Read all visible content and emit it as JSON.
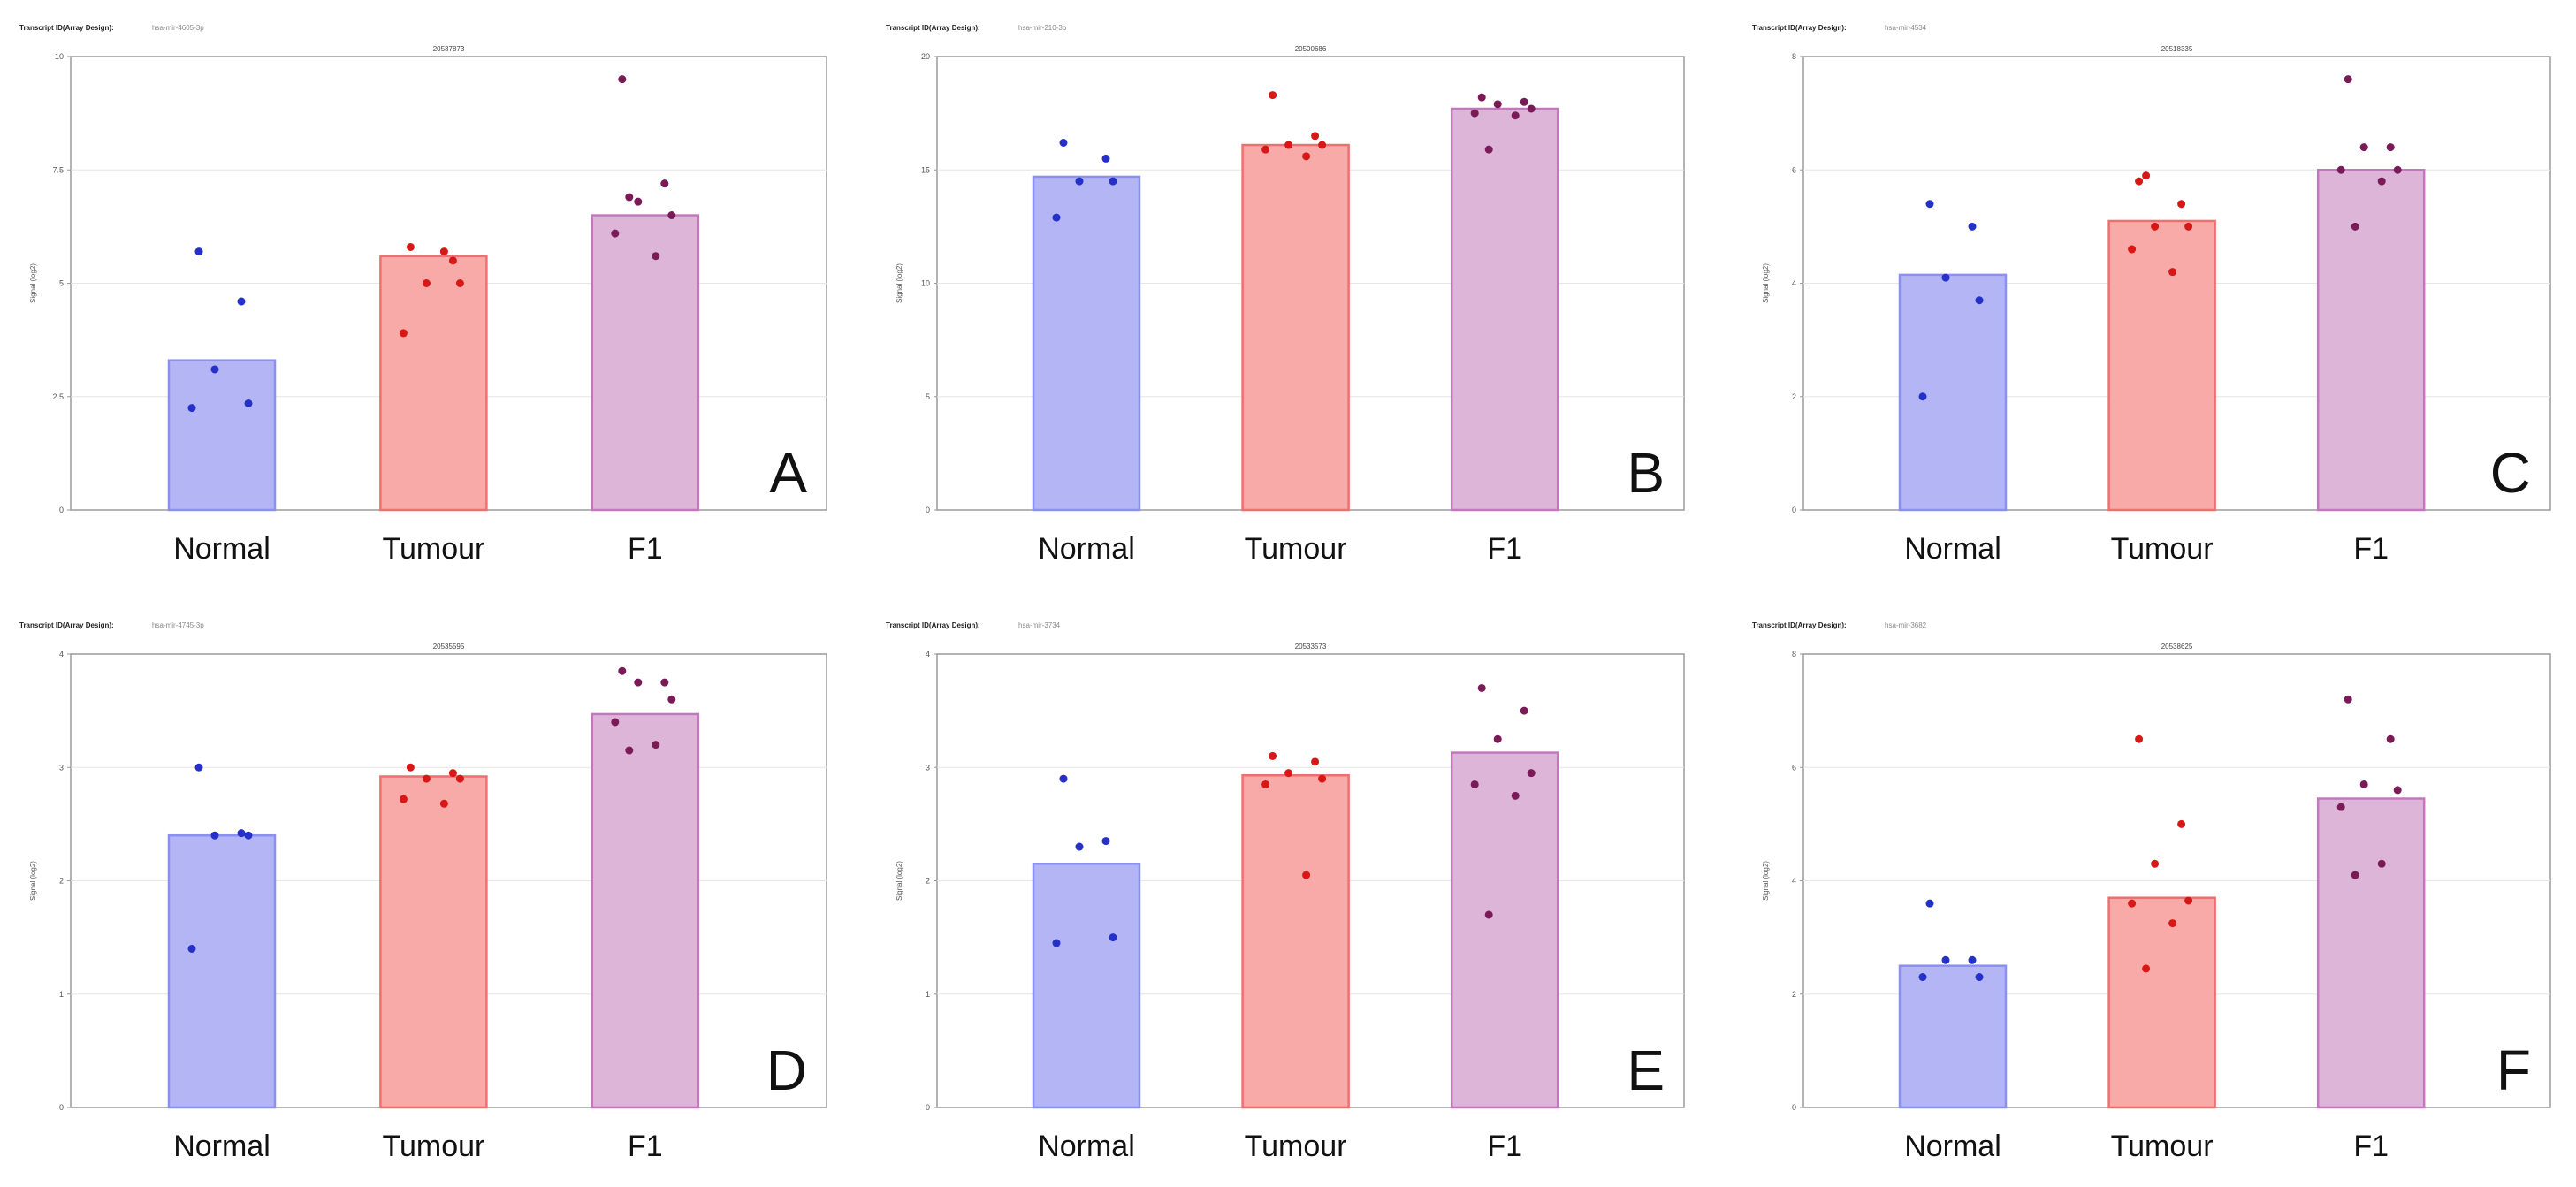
{
  "chart_data": [
    {
      "type": "bar",
      "panel_letter": "A",
      "header": "Transcript ID(Array Design):",
      "header_sub": "hsa-mir-4605-3p",
      "title": "20537873",
      "ylabel": "Signal (log2)",
      "ylim": [
        0,
        10
      ],
      "yticks": [
        0,
        2.5,
        5,
        7.5,
        10
      ],
      "ytick_labels": [
        "0",
        "2.5",
        "5",
        "7.5",
        "10"
      ],
      "categories": [
        "Normal",
        "Tumour",
        "F1"
      ],
      "colors": [
        "#b3b5f5",
        "#f8aaa8",
        "#ddb5d9"
      ],
      "edge_colors": [
        "#8b8ff0",
        "#ee6f6f",
        "#c477bd"
      ],
      "point_colors": [
        "#2430c8",
        "#d81717",
        "#7a1a57"
      ],
      "values": [
        3.3,
        5.6,
        6.5
      ],
      "points": [
        [
          5.7,
          4.6,
          3.1,
          2.35,
          2.25
        ],
        [
          5.8,
          5.5,
          5.0,
          5.0,
          3.9,
          5.7
        ],
        [
          9.5,
          7.2,
          6.8,
          6.5,
          6.1,
          5.6,
          6.9
        ]
      ]
    },
    {
      "type": "bar",
      "panel_letter": "B",
      "header": "Transcript ID(Array Design):",
      "header_sub": "hsa-mir-210-3p",
      "title": "20500686",
      "ylabel": "Signal (log2)",
      "ylim": [
        0,
        20
      ],
      "yticks": [
        0,
        5,
        10,
        15,
        20
      ],
      "ytick_labels": [
        "0",
        "5",
        "10",
        "15",
        "20"
      ],
      "categories": [
        "Normal",
        "Tumour",
        "F1"
      ],
      "colors": [
        "#b3b5f5",
        "#f8aaa8",
        "#ddb5d9"
      ],
      "edge_colors": [
        "#8b8ff0",
        "#ee6f6f",
        "#c477bd"
      ],
      "point_colors": [
        "#2430c8",
        "#d81717",
        "#7a1a57"
      ],
      "values": [
        14.7,
        16.1,
        17.7
      ],
      "points": [
        [
          16.2,
          15.5,
          14.5,
          14.5,
          12.9
        ],
        [
          18.3,
          16.5,
          16.1,
          16.1,
          15.9,
          15.6
        ],
        [
          18.2,
          18.0,
          17.9,
          17.7,
          17.5,
          17.4,
          15.9
        ]
      ]
    },
    {
      "type": "bar",
      "panel_letter": "C",
      "header": "Transcript ID(Array Design):",
      "header_sub": "hsa-mir-4534",
      "title": "20518335",
      "ylabel": "Signal (log2)",
      "ylim": [
        0,
        8
      ],
      "yticks": [
        0,
        2,
        4,
        6,
        8
      ],
      "ytick_labels": [
        "0",
        "2",
        "4",
        "6",
        "8"
      ],
      "categories": [
        "Normal",
        "Tumour",
        "F1"
      ],
      "colors": [
        "#b3b5f5",
        "#f8aaa8",
        "#ddb5d9"
      ],
      "edge_colors": [
        "#8b8ff0",
        "#ee6f6f",
        "#c477bd"
      ],
      "point_colors": [
        "#2430c8",
        "#d81717",
        "#7a1a57"
      ],
      "values": [
        4.15,
        5.1,
        6.0
      ],
      "points": [
        [
          5.4,
          5.0,
          4.1,
          3.7,
          2.0
        ],
        [
          5.8,
          5.4,
          5.0,
          5.0,
          4.6,
          4.2,
          5.9
        ],
        [
          7.6,
          6.4,
          6.4,
          6.0,
          6.0,
          5.8,
          5.0
        ]
      ]
    },
    {
      "type": "bar",
      "panel_letter": "D",
      "header": "Transcript ID(Array Design):",
      "header_sub": "hsa-mir-4745-3p",
      "title": "20535595",
      "ylabel": "Signal (log2)",
      "ylim": [
        0,
        4
      ],
      "yticks": [
        0,
        1,
        2,
        3,
        4
      ],
      "ytick_labels": [
        "0",
        "1",
        "2",
        "3",
        "4"
      ],
      "categories": [
        "Normal",
        "Tumour",
        "F1"
      ],
      "colors": [
        "#b3b5f5",
        "#f8aaa8",
        "#ddb5d9"
      ],
      "edge_colors": [
        "#8b8ff0",
        "#ee6f6f",
        "#c477bd"
      ],
      "point_colors": [
        "#2430c8",
        "#d81717",
        "#7a1a57"
      ],
      "values": [
        2.4,
        2.92,
        3.47
      ],
      "points": [
        [
          3.0,
          2.42,
          2.4,
          2.4,
          1.4
        ],
        [
          3.0,
          2.95,
          2.9,
          2.9,
          2.72,
          2.68
        ],
        [
          3.85,
          3.75,
          3.75,
          3.6,
          3.4,
          3.2,
          3.15
        ]
      ]
    },
    {
      "type": "bar",
      "panel_letter": "E",
      "header": "Transcript ID(Array Design):",
      "header_sub": "hsa-mir-3734",
      "title": "20533573",
      "ylabel": "Signal (log2)",
      "ylim": [
        0,
        4
      ],
      "yticks": [
        0,
        1,
        2,
        3,
        4
      ],
      "ytick_labels": [
        "0",
        "1",
        "2",
        "3",
        "4"
      ],
      "categories": [
        "Normal",
        "Tumour",
        "F1"
      ],
      "colors": [
        "#b3b5f5",
        "#f8aaa8",
        "#ddb5d9"
      ],
      "edge_colors": [
        "#8b8ff0",
        "#ee6f6f",
        "#c477bd"
      ],
      "point_colors": [
        "#2430c8",
        "#d81717",
        "#7a1a57"
      ],
      "values": [
        2.15,
        2.93,
        3.13
      ],
      "points": [
        [
          2.9,
          2.35,
          2.3,
          1.5,
          1.45
        ],
        [
          3.1,
          3.05,
          2.95,
          2.9,
          2.85,
          2.05
        ],
        [
          3.7,
          3.5,
          3.25,
          2.95,
          2.85,
          2.75,
          1.7
        ]
      ]
    },
    {
      "type": "bar",
      "panel_letter": "F",
      "header": "Transcript ID(Array Design):",
      "header_sub": "hsa-mir-3682",
      "title": "20538625",
      "ylabel": "Signal (log2)",
      "ylim": [
        0,
        8
      ],
      "yticks": [
        0,
        2,
        4,
        6,
        8
      ],
      "ytick_labels": [
        "0",
        "2",
        "4",
        "6",
        "8"
      ],
      "categories": [
        "Normal",
        "Tumour",
        "F1"
      ],
      "colors": [
        "#b3b5f5",
        "#f8aaa8",
        "#ddb5d9"
      ],
      "edge_colors": [
        "#8b8ff0",
        "#ee6f6f",
        "#c477bd"
      ],
      "point_colors": [
        "#2430c8",
        "#d81717",
        "#7a1a57"
      ],
      "values": [
        2.5,
        3.7,
        5.45
      ],
      "points": [
        [
          3.6,
          2.6,
          2.6,
          2.3,
          2.3
        ],
        [
          6.5,
          5.0,
          4.3,
          3.65,
          3.6,
          3.25,
          2.45
        ],
        [
          7.2,
          6.5,
          5.7,
          5.6,
          5.3,
          4.3,
          4.1
        ]
      ]
    }
  ]
}
